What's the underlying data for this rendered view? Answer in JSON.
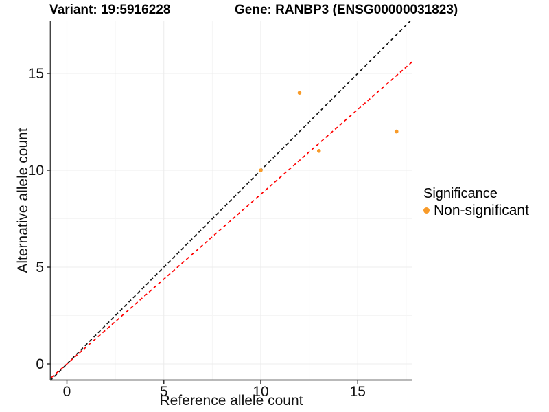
{
  "header": {
    "variant_title": "Variant: 19:5916228",
    "gene_title": "Gene: RANBP3 (ENSG00000031823)"
  },
  "legend": {
    "title": "Significance",
    "items": [
      {
        "label": "Non-significant",
        "color": "#F89B29"
      }
    ]
  },
  "chart_data": {
    "type": "scatter",
    "xlabel": "Reference allele count",
    "ylabel": "Alternative allele count",
    "x_ticks": [
      0,
      5,
      10,
      15
    ],
    "y_ticks": [
      0,
      5,
      10,
      15
    ],
    "x_minor_ticks": [
      2.5,
      7.5,
      12.5,
      17.5
    ],
    "y_minor_ticks": [
      2.5,
      7.5,
      12.5,
      17.5
    ],
    "xlim": [
      -0.87,
      17.8
    ],
    "ylim": [
      -0.82,
      17.73
    ],
    "grid": true,
    "legend_position": "right",
    "series": [
      {
        "name": "Non-significant",
        "color": "#F89B29",
        "points": [
          {
            "x": 10,
            "y": 10
          },
          {
            "x": 12,
            "y": 14
          },
          {
            "x": 13,
            "y": 11
          },
          {
            "x": 17,
            "y": 12
          }
        ]
      }
    ],
    "reference_lines": [
      {
        "name": "identity-line",
        "slope": 1,
        "intercept": 0,
        "color": "#111111",
        "style": "dashed"
      },
      {
        "name": "fit-line",
        "slope": 0.876,
        "intercept": 0,
        "color": "#FF0000",
        "style": "dashed"
      }
    ],
    "style_colors": {
      "grid_major": "#ECECEC",
      "grid_minor": "#F5F5F5",
      "axis_line": "#444444",
      "tick_label": "#111111"
    }
  }
}
